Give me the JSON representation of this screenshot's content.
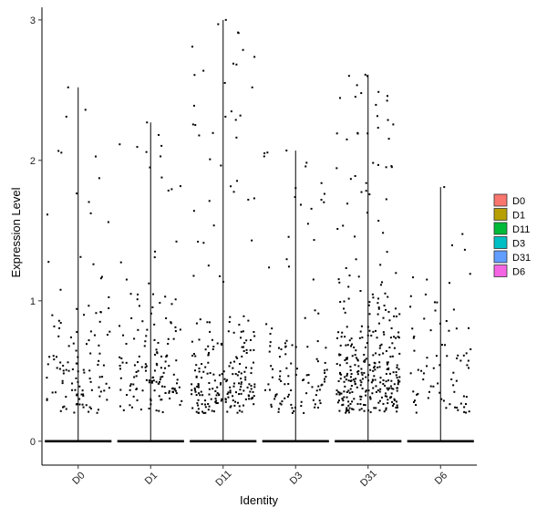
{
  "chart_data": {
    "type": "violin-jitter",
    "xlabel": "Identity",
    "ylabel": "Expression Level",
    "categories": [
      "D0",
      "D1",
      "D11",
      "D3",
      "D31",
      "D6"
    ],
    "ylim": [
      -0.17,
      3.09
    ],
    "yticks": [
      0,
      1,
      2,
      3
    ],
    "max_values": [
      2.52,
      2.27,
      3.0,
      2.07,
      2.61,
      1.81
    ],
    "colors": [
      "#F8766D",
      "#B79F00",
      "#00BA38",
      "#00BFC4",
      "#619CFF",
      "#F564E3"
    ],
    "nonzero_points": [
      {
        "count": 120,
        "typical": 0.55,
        "max": 2.52
      },
      {
        "count": 150,
        "typical": 0.6,
        "max": 2.27
      },
      {
        "count": 230,
        "typical": 0.45,
        "max": 3.0
      },
      {
        "count": 110,
        "typical": 0.45,
        "max": 2.07
      },
      {
        "count": 340,
        "typical": 0.65,
        "max": 2.61
      },
      {
        "count": 80,
        "typical": 0.6,
        "max": 1.81
      }
    ],
    "legend": {
      "position": "right",
      "entries": [
        "D0",
        "D1",
        "D11",
        "D3",
        "D31",
        "D6"
      ]
    },
    "grid": false
  }
}
